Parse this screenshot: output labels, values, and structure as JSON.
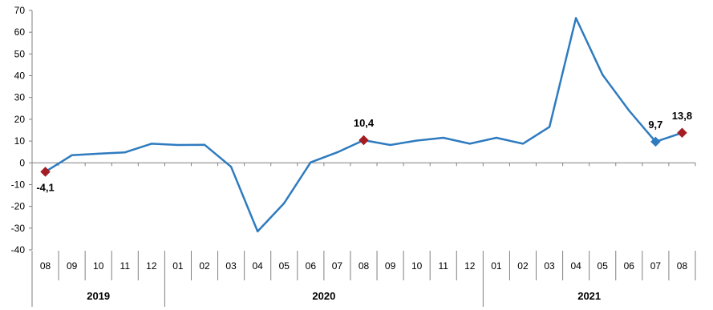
{
  "chart_data": {
    "type": "line",
    "title": "",
    "xlabel": "",
    "ylabel": "",
    "ylim": [
      -40,
      70
    ],
    "yticks": [
      -40,
      -30,
      -20,
      -10,
      0,
      10,
      20,
      30,
      40,
      50,
      60,
      70
    ],
    "categories": [
      "08",
      "09",
      "10",
      "11",
      "12",
      "01",
      "02",
      "03",
      "04",
      "05",
      "06",
      "07",
      "08",
      "09",
      "10",
      "11",
      "12",
      "01",
      "02",
      "03",
      "04",
      "05",
      "06",
      "07",
      "08"
    ],
    "years": [
      {
        "label": "2019",
        "start": 0,
        "end": 4
      },
      {
        "label": "2020",
        "start": 5,
        "end": 16
      },
      {
        "label": "2021",
        "start": 17,
        "end": 24
      }
    ],
    "series": [
      {
        "color": "#2e7bbf",
        "values": [
          -4.1,
          3.5,
          4.2,
          4.8,
          8.8,
          8.2,
          8.3,
          -1.8,
          -31.5,
          -18.5,
          0.2,
          4.8,
          10.4,
          8.2,
          10.2,
          11.5,
          8.8,
          11.5,
          8.8,
          16.5,
          66.5,
          40.5,
          24.0,
          9.7,
          13.8
        ]
      }
    ],
    "markers": [
      {
        "index": 0,
        "label": "-4,1",
        "color": "#a31d23",
        "label_pos": "below"
      },
      {
        "index": 12,
        "label": "10,4",
        "color": "#a31d23",
        "label_pos": "above"
      },
      {
        "index": 23,
        "label": "9,7",
        "color": "#2e7bbf",
        "label_pos": "above"
      },
      {
        "index": 24,
        "label": "13,8",
        "color": "#a31d23",
        "label_pos": "above"
      }
    ]
  }
}
